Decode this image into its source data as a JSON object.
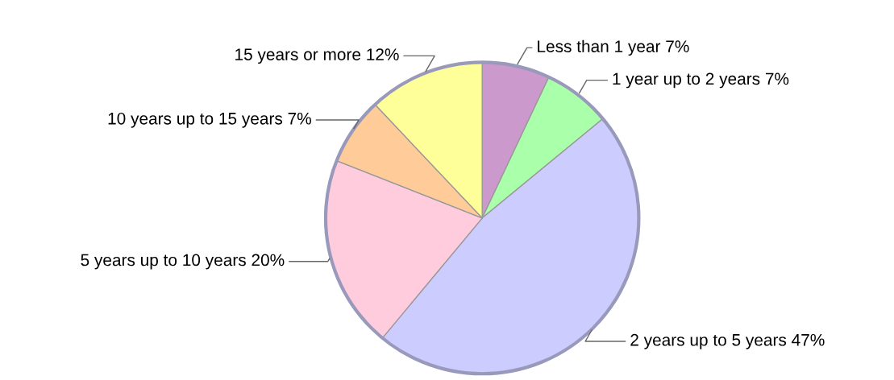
{
  "chart_data": {
    "type": "pie",
    "categories": [
      "Less than 1 year",
      "1 year up to 2 years",
      "2 years up to 5 years",
      "5 years up to 10 years",
      "10 years up to 15 years",
      "15 years or more"
    ],
    "values": [
      7,
      7,
      47,
      20,
      7,
      12
    ],
    "value_labels": [
      "7%",
      "7%",
      "47%",
      "20%",
      "7%",
      "12%"
    ],
    "colors": [
      "#cc99cc",
      "#aaffaa",
      "#ccccff",
      "#ffccdd",
      "#ffcc99",
      "#ffff99"
    ]
  }
}
